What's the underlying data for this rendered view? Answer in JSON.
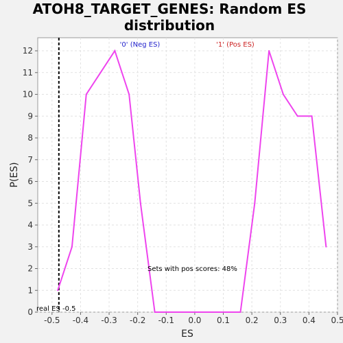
{
  "chart_data": {
    "type": "line",
    "title_line1": "ATOH8_TARGET_GENES: Random ES",
    "title_line2": "distribution",
    "xlabel": "ES",
    "ylabel": "P(ES)",
    "xlim": [
      -0.55,
      0.5
    ],
    "ylim": [
      0,
      12.6
    ],
    "x_ticks": [
      "-0.5",
      "-0.4",
      "-0.3",
      "-0.2",
      "-0.1",
      "0.0",
      "0.1",
      "0.2",
      "0.3",
      "0.4",
      "0.5"
    ],
    "x_tick_values": [
      -0.5,
      -0.4,
      -0.3,
      -0.2,
      -0.1,
      0.0,
      0.1,
      0.2,
      0.3,
      0.4,
      0.5
    ],
    "y_ticks": [
      0,
      1,
      2,
      3,
      4,
      5,
      6,
      7,
      8,
      9,
      10,
      11,
      12
    ],
    "grid": true,
    "series": [
      {
        "color": "#ee44ee",
        "x": [
          -0.48,
          -0.43,
          -0.38,
          -0.33,
          -0.28,
          -0.23,
          -0.19,
          -0.14,
          -0.09,
          -0.04,
          0.01,
          0.06,
          0.11,
          0.16,
          0.21,
          0.26,
          0.31,
          0.36,
          0.41,
          0.46
        ],
        "y": [
          1,
          3,
          10,
          11,
          12,
          10,
          5,
          0,
          0,
          0,
          0,
          0,
          0,
          0,
          5,
          12,
          10,
          9,
          9,
          3
        ]
      }
    ],
    "real_es": {
      "value": -0.5,
      "label": "real ES -0.5"
    },
    "annotations": {
      "neg_label": "'0' (Neg ES)",
      "neg_color": "#2222cc",
      "pos_label": "'1' (Pos ES)",
      "pos_color": "#cc2222",
      "pos_scores_text": "Sets with pos scores: 48%"
    }
  }
}
